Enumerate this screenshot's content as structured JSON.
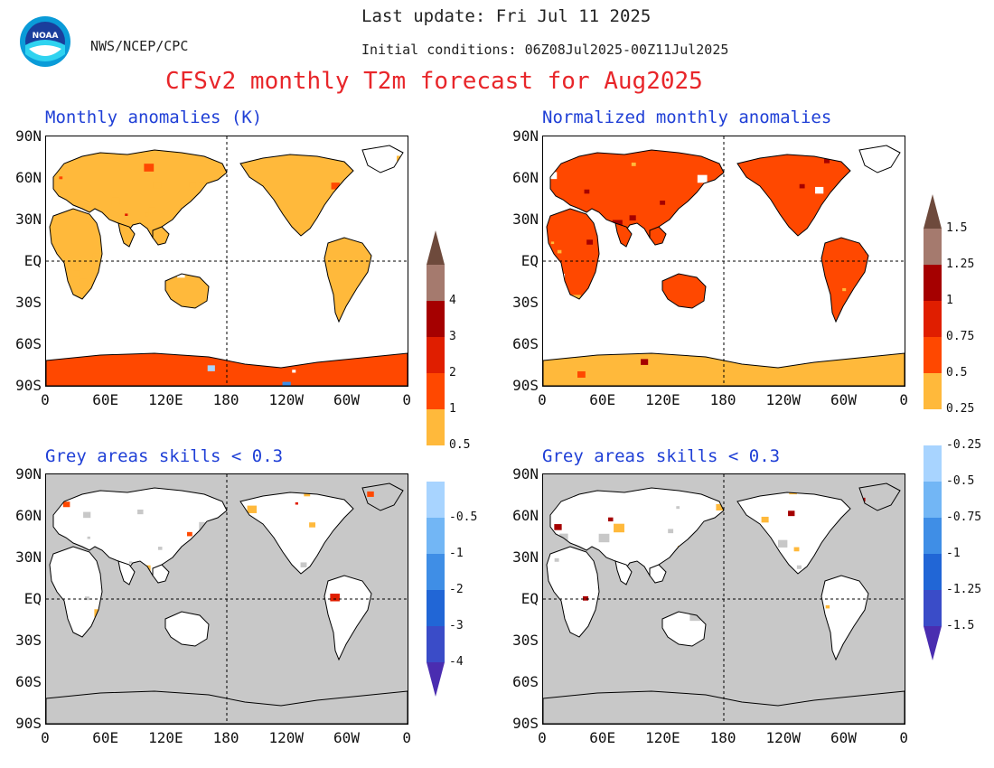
{
  "header": {
    "last_update": "Last update: Fri Jul 11 2025",
    "initial_conditions": "Initial conditions: 06Z08Jul2025-00Z11Jul2025",
    "org": "NWS/NCEP/CPC",
    "title": "CFSv2 monthly T2m forecast for Aug2025",
    "logo_text": "NOAA"
  },
  "panels": [
    {
      "id": "anom",
      "title": "Monthly anomalies (K)"
    },
    {
      "id": "norm",
      "title": "Normalized monthly anomalies"
    },
    {
      "id": "anom_skill",
      "title": "Grey areas skills < 0.3"
    },
    {
      "id": "norm_skill",
      "title": "Grey areas skills < 0.3"
    }
  ],
  "axes": {
    "lat_labels": [
      "90N",
      "60N",
      "30N",
      "EQ",
      "30S",
      "60S",
      "90S"
    ],
    "lon_labels": [
      "0",
      "60E",
      "120E",
      "180",
      "120W",
      "60W",
      "0"
    ]
  },
  "colorbars": {
    "left": {
      "labels": [
        "4",
        "3",
        "2",
        "1",
        "0.5",
        "-0.5",
        "-1",
        "-2",
        "-3",
        "-4"
      ]
    },
    "right": {
      "labels": [
        "1.5",
        "1.25",
        "1",
        "0.75",
        "0.5",
        "0.25",
        "-0.25",
        "-0.5",
        "-0.75",
        "-1",
        "-1.25",
        "-1.5"
      ]
    },
    "colors_warm": [
      "#6e4a3c",
      "#a57a6e",
      "#a50000",
      "#e01e00",
      "#ff4800",
      "#ffb93b"
    ],
    "colors_cool": [
      "#a8d4ff",
      "#72b6f5",
      "#3f8ee6",
      "#2166d6",
      "#3a4cc8",
      "#4a2db0"
    ],
    "neutral": "#ffffff"
  },
  "colors": {
    "skill_grey": "#c8c8c8",
    "title_red": "#e8262a",
    "panel_title_blue": "#1f3fd6"
  }
}
